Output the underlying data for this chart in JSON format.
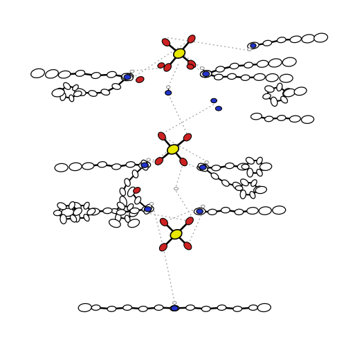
{
  "bg": "#ffffff",
  "S_fc": "#e8e800",
  "S_ec": "#000000",
  "O_fc": "#cc2222",
  "O_ec": "#000000",
  "N_fc": "#2233cc",
  "N_ec": "#000000",
  "C_fc": "#ffffff",
  "C_ec": "#000000",
  "H_fc": "#ffffff",
  "H_ec": "#888888",
  "bond_c": "#000000",
  "hbond_c": "#aaaaaa",
  "figsize": [
    5.0,
    5.0
  ],
  "dpi": 100,
  "xlim": [
    -0.5,
    10.5
  ],
  "ylim": [
    -0.5,
    10.5
  ]
}
